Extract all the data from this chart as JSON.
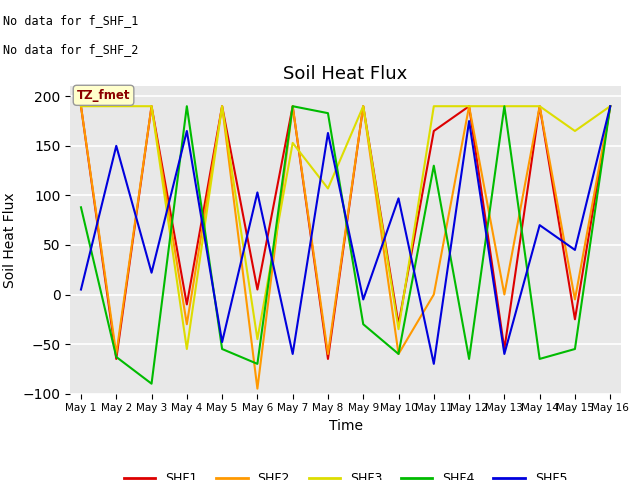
{
  "title": "Soil Heat Flux",
  "xlabel": "Time",
  "ylabel": "Soil Heat Flux",
  "ylim": [
    -100,
    210
  ],
  "yticks": [
    -100,
    -50,
    0,
    50,
    100,
    150,
    200
  ],
  "annotation_text1": "No data for f_SHF_1",
  "annotation_text2": "No data for f_SHF_2",
  "box_label": "TZ_fmet",
  "colors": {
    "SHF1": "#dd0000",
    "SHF2": "#ff9900",
    "SHF3": "#dddd00",
    "SHF4": "#00bb00",
    "SHF5": "#0000dd"
  },
  "background_color": "#e8e8e8",
  "time_labels": [
    "May 1",
    "May 2",
    "May 3",
    "May 4",
    "May 5",
    "May 6",
    "May 7",
    "May 8",
    "May 9",
    "May 10",
    "May 11",
    "May 12",
    "May 13",
    "May 14",
    "May 15",
    "May 16"
  ],
  "SHF1": [
    190,
    -65,
    190,
    -10,
    190,
    5,
    190,
    -65,
    190,
    -30,
    165,
    190,
    -55,
    190,
    -25,
    190
  ],
  "SHF2": [
    190,
    -60,
    190,
    -30,
    190,
    -95,
    190,
    -60,
    190,
    -60,
    0,
    190,
    0,
    190,
    -5,
    190
  ],
  "SHF3": [
    190,
    190,
    190,
    -55,
    190,
    -45,
    153,
    107,
    190,
    -35,
    190,
    190,
    190,
    190,
    165,
    190
  ],
  "SHF4": [
    88,
    -63,
    -90,
    190,
    -55,
    -70,
    190,
    183,
    -30,
    -60,
    130,
    -65,
    190,
    -65,
    -55,
    190
  ],
  "SHF5": [
    5,
    150,
    22,
    165,
    -48,
    103,
    -60,
    163,
    -5,
    97,
    -70,
    175,
    -60,
    70,
    45,
    190
  ]
}
